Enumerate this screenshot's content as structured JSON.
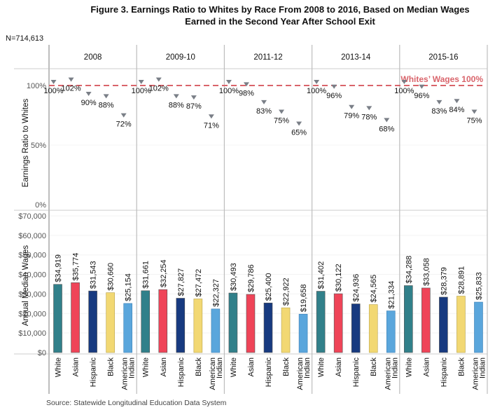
{
  "chart_data": {
    "type": "bar",
    "title_line1": "Figure 3. Earnings Ratio to Whites by Race From 2008 to 2016, Based on Median Wages",
    "title_line2": "Earned in the Second Year After School Exit",
    "n_label": "N=714,613",
    "source": "Source: Statewide Longitudinal Education Data System",
    "panels": [
      "2008",
      "2009-10",
      "2011-12",
      "2013-14",
      "2015-16"
    ],
    "categories": [
      "White",
      "Asian",
      "Hispanic",
      "Black",
      "American Indian"
    ],
    "category_lines": [
      [
        "White"
      ],
      [
        "Asian"
      ],
      [
        "Hispanic"
      ],
      [
        "Black"
      ],
      [
        "American",
        "Indian"
      ]
    ],
    "colors": {
      "White": "#31808a",
      "Asian": "#ef4458",
      "Hispanic": "#173a80",
      "Black": "#f2d873",
      "American Indian": "#5aa6dc",
      "ratio_marker": "#7a7f87",
      "reference_line": "#d9646b",
      "gridline": "#ececec",
      "panel_divider": "#bdbdbd"
    },
    "ratio_chart": {
      "type": "scatter",
      "ylabel": "Earnings Ratio to Whites",
      "ylim": [
        0,
        1.15
      ],
      "yticks": [
        0,
        0.5,
        1.0
      ],
      "ytick_labels": [
        "0%",
        "50%",
        "100%"
      ],
      "reference_line": {
        "value": 1.0,
        "label": "Whites’ Wages 100%"
      },
      "series": [
        {
          "panel": "2008",
          "values": [
            1.0,
            1.02,
            0.9,
            0.88,
            0.72
          ],
          "labels": [
            "100%",
            "102%",
            "90%",
            "88%",
            "72%"
          ]
        },
        {
          "panel": "2009-10",
          "values": [
            1.0,
            1.02,
            0.88,
            0.87,
            0.71
          ],
          "labels": [
            "100%",
            "102%",
            "88%",
            "87%",
            "71%"
          ]
        },
        {
          "panel": "2011-12",
          "values": [
            1.0,
            0.98,
            0.83,
            0.75,
            0.65
          ],
          "labels": [
            "100%",
            "98%",
            "83%",
            "75%",
            "65%"
          ]
        },
        {
          "panel": "2013-14",
          "values": [
            1.0,
            0.96,
            0.79,
            0.78,
            0.68
          ],
          "labels": [
            "100%",
            "96%",
            "79%",
            "78%",
            "68%"
          ]
        },
        {
          "panel": "2015-16",
          "values": [
            1.0,
            0.96,
            0.83,
            0.84,
            0.75
          ],
          "labels": [
            "100%",
            "96%",
            "83%",
            "84%",
            "75%"
          ]
        }
      ]
    },
    "wage_chart": {
      "type": "bar",
      "ylabel": "Annual Median Wages",
      "ylim": [
        0,
        70000
      ],
      "yticks": [
        0,
        10000,
        20000,
        30000,
        40000,
        50000,
        60000,
        70000
      ],
      "ytick_labels": [
        "$0",
        "$10,000",
        "$20,000",
        "$30,000",
        "$40,000",
        "$50,000",
        "$60,000",
        "$70,000"
      ],
      "series": [
        {
          "panel": "2008",
          "values": [
            34919,
            35774,
            31543,
            30660,
            25154
          ],
          "labels": [
            "$34,919",
            "$35,774",
            "$31,543",
            "$30,660",
            "$25,154"
          ]
        },
        {
          "panel": "2009-10",
          "values": [
            31661,
            32254,
            27827,
            27472,
            22327
          ],
          "labels": [
            "$31,661",
            "$32,254",
            "$27,827",
            "$27,472",
            "$22,327"
          ]
        },
        {
          "panel": "2011-12",
          "values": [
            30493,
            29786,
            25400,
            22922,
            19658
          ],
          "labels": [
            "$30,493",
            "$29,786",
            "$25,400",
            "$22,922",
            "$19,658"
          ]
        },
        {
          "panel": "2013-14",
          "values": [
            31402,
            30122,
            24936,
            24565,
            21334
          ],
          "labels": [
            "$31,402",
            "$30,122",
            "$24,936",
            "$24,565",
            "$21,334"
          ]
        },
        {
          "panel": "2015-16",
          "values": [
            34288,
            33058,
            28379,
            28891,
            25833
          ],
          "labels": [
            "$34,288",
            "$33,058",
            "$28,379",
            "$28,891",
            "$25,833"
          ]
        }
      ]
    }
  }
}
